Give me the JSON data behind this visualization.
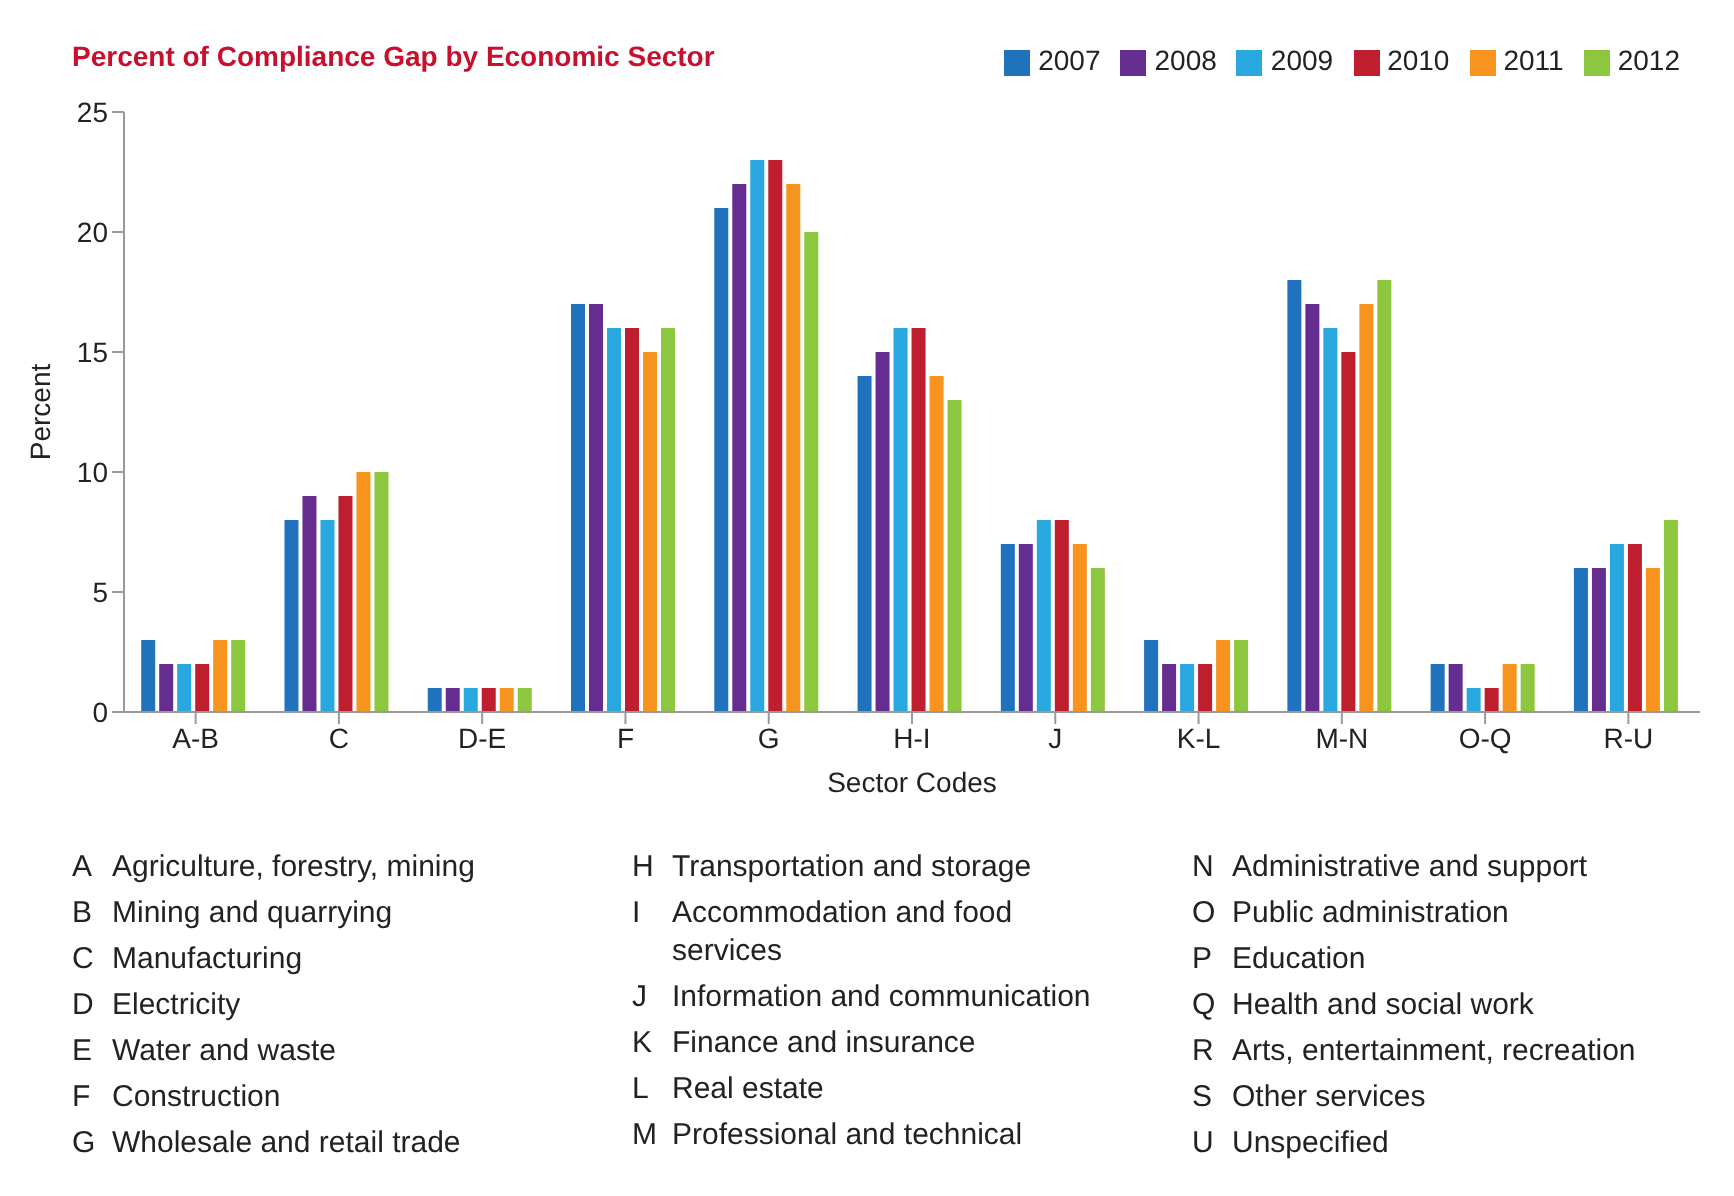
{
  "chart_data": {
    "type": "bar",
    "title": "Percent of Compliance Gap by Economic Sector",
    "xlabel": "Sector Codes",
    "ylabel": "Percent",
    "categories": [
      "A-B",
      "C",
      "D-E",
      "F",
      "G",
      "H-I",
      "J",
      "K-L",
      "M-N",
      "O-Q",
      "R-U"
    ],
    "series": [
      {
        "name": "2007",
        "color": "#1f72bb",
        "values": [
          3,
          8,
          1,
          17,
          21,
          14,
          7,
          3,
          18,
          2,
          6
        ]
      },
      {
        "name": "2008",
        "color": "#662d91",
        "values": [
          2,
          9,
          1,
          17,
          22,
          15,
          7,
          2,
          17,
          2,
          6
        ]
      },
      {
        "name": "2009",
        "color": "#29a8e0",
        "values": [
          2,
          8,
          1,
          16,
          23,
          16,
          8,
          2,
          16,
          1,
          7
        ]
      },
      {
        "name": "2010",
        "color": "#be1e2d",
        "values": [
          2,
          9,
          1,
          16,
          23,
          16,
          8,
          2,
          15,
          1,
          7
        ]
      },
      {
        "name": "2011",
        "color": "#f7941d",
        "values": [
          3,
          10,
          1,
          15,
          22,
          14,
          7,
          3,
          17,
          2,
          6
        ]
      },
      {
        "name": "2012",
        "color": "#8dc63f",
        "values": [
          3,
          10,
          1,
          16,
          20,
          13,
          6,
          3,
          18,
          2,
          8
        ]
      }
    ],
    "ylim": [
      0,
      25
    ],
    "yticks": [
      0,
      5,
      10,
      15,
      20,
      25
    ],
    "grid": false,
    "legend": "top right",
    "annotations": [
      "A Agriculture, forestry, mining",
      "B Mining and quarrying",
      "C Manufacturing",
      "D Electricity",
      "E Water and waste",
      "F Construction",
      "G Wholesale and retail trade",
      "H Transportation and storage",
      "I Accommodation and food services",
      "J Information and communication",
      "K Finance and insurance",
      "L Real estate",
      "M Professional and technical",
      "N Administrative and support",
      "O Public administration",
      "P Education",
      "Q Health and social work",
      "R Arts, entertainment, recreation",
      "S Other services",
      "U Unspecified"
    ]
  }
}
